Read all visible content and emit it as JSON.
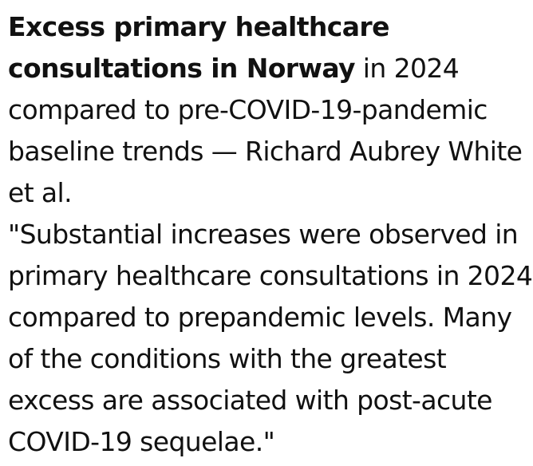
{
  "post": {
    "title_bold": "Excess primary healthcare consultations in Norway",
    "title_rest": " in 2024 compared to pre-COVID-19-pandemic baseline trends — Richard Aubrey White et al.",
    "quote": "\"Substantial increases were observed in primary healthcare consultations in 2024 compared to prepandemic levels. Many of the conditions with the greatest excess are associated with post-acute COVID-19 sequelae.\""
  }
}
